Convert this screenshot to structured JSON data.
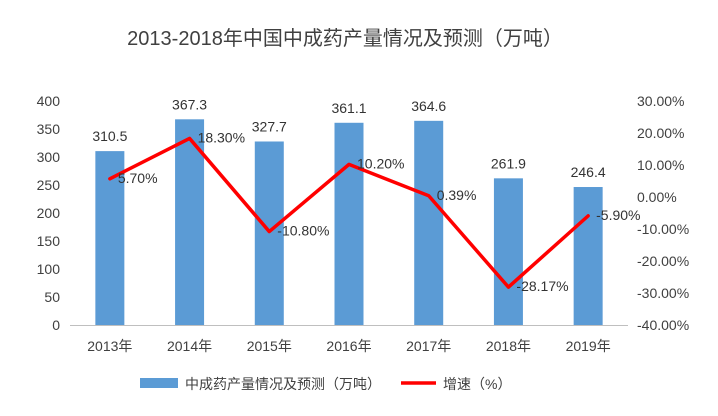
{
  "chart_data": {
    "type": "bar",
    "title": "2013-2018年中国中成药产量情况及预测（万吨）",
    "categories": [
      "2013年",
      "2014年",
      "2015年",
      "2016年",
      "2017年",
      "2018年",
      "2019年"
    ],
    "series": [
      {
        "name": "中成药产量情况及预测（万吨）",
        "type": "bar",
        "axis": "left",
        "color": "#5b9bd5",
        "values": [
          310.5,
          367.3,
          327.7,
          361.1,
          364.6,
          261.9,
          246.4
        ],
        "labels": [
          "310.5",
          "367.3",
          "327.7",
          "361.1",
          "364.6",
          "261.9",
          "246.4"
        ]
      },
      {
        "name": "增速（%）",
        "type": "line",
        "axis": "right",
        "color": "#ff0000",
        "values": [
          5.7,
          18.3,
          -10.8,
          10.2,
          0.39,
          -28.17,
          -5.9
        ],
        "labels": [
          "5.70%",
          "18.30%",
          "-10.80%",
          "10.20%",
          "0.39%",
          "-28.17%",
          "-5.90%"
        ]
      }
    ],
    "y_left": {
      "ylim": [
        0,
        400
      ],
      "ticks": [
        0,
        50,
        100,
        150,
        200,
        250,
        300,
        350,
        400
      ],
      "tick_labels": [
        "0",
        "50",
        "100",
        "150",
        "200",
        "250",
        "300",
        "350",
        "400"
      ]
    },
    "y_right": {
      "ylim": [
        -40,
        30
      ],
      "ticks": [
        -40,
        -30,
        -20,
        -10,
        0,
        10,
        20,
        30
      ],
      "tick_labels": [
        "-40.00%",
        "-30.00%",
        "-20.00%",
        "-10.00%",
        "0.00%",
        "10.00%",
        "20.00%",
        "30.00%"
      ]
    },
    "grid": false,
    "legend": "bottom"
  }
}
